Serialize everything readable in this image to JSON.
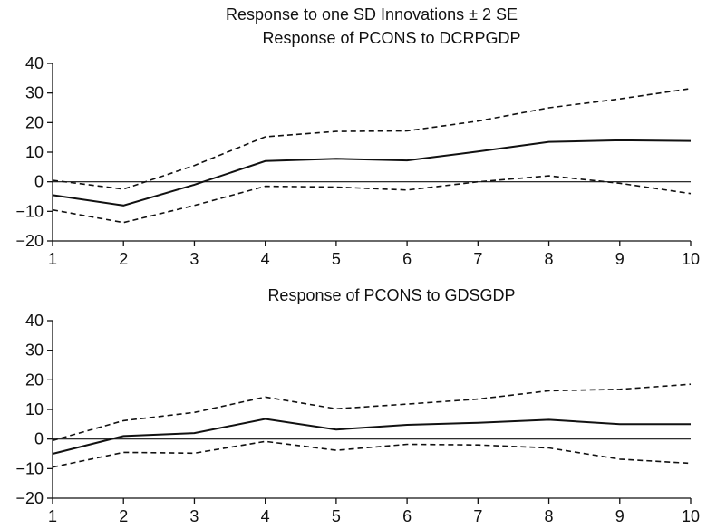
{
  "figure": {
    "title": "Response to one SD Innovations ± 2 SE"
  },
  "chart_data": [
    {
      "type": "line",
      "title": "Response of PCONS to DCRPGDP",
      "x": [
        1,
        2,
        3,
        4,
        5,
        6,
        7,
        8,
        9,
        10
      ],
      "xlim": [
        1,
        10
      ],
      "ylim": [
        -20,
        40
      ],
      "xticks": [
        "1",
        "2",
        "3",
        "4",
        "5",
        "6",
        "7",
        "8",
        "9",
        "10"
      ],
      "yticks": [
        "40",
        "30",
        "20",
        "10",
        "0",
        "−10",
        "−20"
      ],
      "ytick_values": [
        40,
        30,
        20,
        10,
        0,
        -10,
        -20
      ],
      "zero_line": true,
      "grid": false,
      "series": [
        {
          "style": "solid",
          "values": [
            -4.5,
            -8.0,
            -1.0,
            7.0,
            7.8,
            7.2,
            10.2,
            13.5,
            14.0,
            13.8
          ]
        },
        {
          "style": "dashed",
          "values": [
            0.5,
            -2.5,
            5.5,
            15.2,
            17.0,
            17.2,
            20.5,
            25.0,
            28.0,
            31.5
          ]
        },
        {
          "style": "dashed",
          "values": [
            -9.5,
            -13.8,
            -8.0,
            -1.5,
            -1.8,
            -2.8,
            0.0,
            2.0,
            -0.5,
            -4.0
          ]
        }
      ]
    },
    {
      "type": "line",
      "title": "Response of PCONS to GDSGDP",
      "x": [
        1,
        2,
        3,
        4,
        5,
        6,
        7,
        8,
        9,
        10
      ],
      "xlim": [
        1,
        10
      ],
      "ylim": [
        -20,
        40
      ],
      "xticks": [
        "1",
        "2",
        "3",
        "4",
        "5",
        "6",
        "7",
        "8",
        "9",
        "10"
      ],
      "yticks": [
        "40",
        "30",
        "20",
        "10",
        "0",
        "−10",
        "−20"
      ],
      "ytick_values": [
        40,
        30,
        20,
        10,
        0,
        -10,
        -20
      ],
      "zero_line": true,
      "grid": false,
      "series": [
        {
          "style": "solid",
          "values": [
            -5.0,
            1.0,
            2.0,
            6.8,
            3.2,
            4.8,
            5.5,
            6.5,
            5.0,
            5.0
          ]
        },
        {
          "style": "dashed",
          "values": [
            -0.5,
            6.2,
            9.0,
            14.2,
            10.2,
            11.8,
            13.5,
            16.3,
            16.8,
            18.5
          ]
        },
        {
          "style": "dashed",
          "values": [
            -9.5,
            -4.5,
            -4.8,
            -0.8,
            -3.8,
            -1.8,
            -2.0,
            -3.0,
            -6.8,
            -8.2
          ]
        }
      ]
    }
  ]
}
